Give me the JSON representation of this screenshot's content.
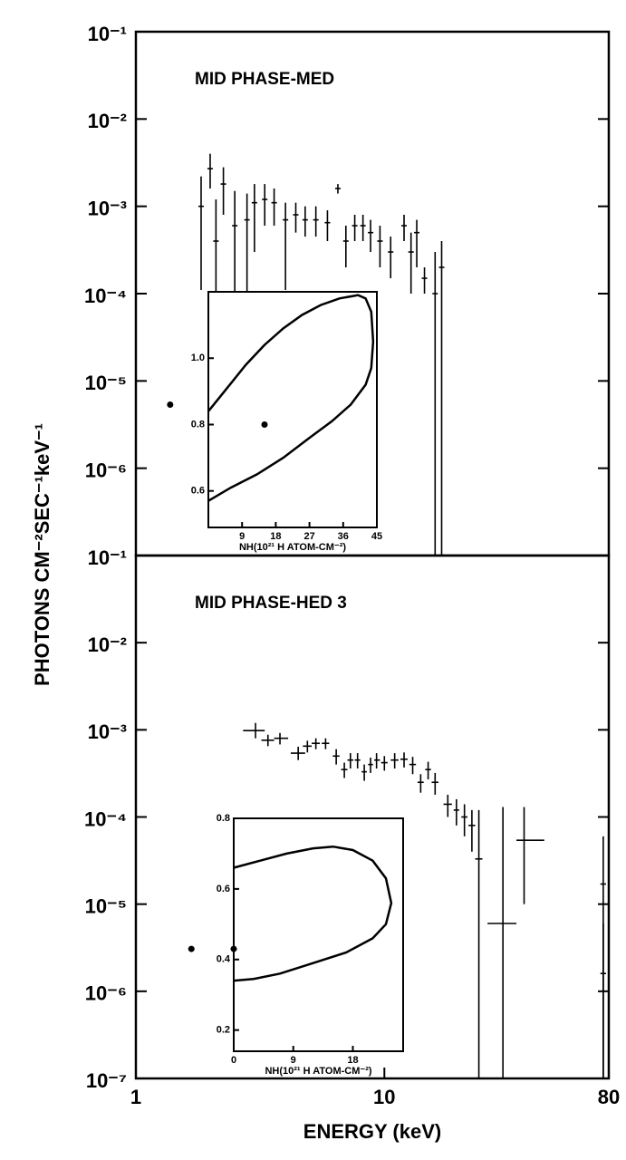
{
  "chart_data": [
    {
      "type": "errorbar",
      "title": "MID PHASE-MED",
      "ylabel": "PHOTONS CM⁻²SEC⁻¹keV⁻¹",
      "xscale": "log",
      "yscale": "log",
      "xlim": [
        1,
        80
      ],
      "ylim": [
        1e-07,
        0.1
      ],
      "yticks": [
        {
          "value": 0.1,
          "label": "10⁻¹"
        },
        {
          "value": 0.01,
          "label": "10⁻²"
        },
        {
          "value": 0.001,
          "label": "10⁻³"
        },
        {
          "value": 0.0001,
          "label": "10⁻⁴"
        },
        {
          "value": 1e-05,
          "label": "10⁻⁵"
        },
        {
          "value": 1e-06,
          "label": "10⁻⁶"
        }
      ],
      "color": "#000000",
      "x": [
        1.83,
        1.99,
        2.1,
        2.25,
        2.5,
        2.8,
        3.0,
        3.3,
        3.6,
        4.0,
        4.4,
        4.8,
        5.3,
        5.9,
        6.5,
        7.0,
        7.6,
        8.2,
        8.8,
        9.6,
        10.6,
        12.0,
        12.8,
        13.5,
        14.5,
        16.0,
        17.0
      ],
      "values": [
        0.001,
        0.0027,
        0.0004,
        0.0018,
        0.0006,
        0.0007,
        0.0011,
        0.0012,
        0.0011,
        0.0007,
        0.0008,
        0.0007,
        0.0007,
        0.00065,
        0.0016,
        0.0004,
        0.0006,
        0.0006,
        0.0005,
        0.0004,
        0.0003,
        0.0006,
        0.0003,
        0.0005,
        0.00015,
        0.0001,
        0.0002
      ],
      "lower": [
        0.00011,
        0.0016,
        0.0001,
        0.0008,
        0.0001,
        0.0001,
        0.0003,
        0.0006,
        0.0006,
        0.00011,
        0.0005,
        0.00045,
        0.00045,
        0.0004,
        0.0014,
        0.0002,
        0.0004,
        0.0004,
        0.0003,
        0.0002,
        0.00015,
        0.0004,
        0.0001,
        0.0002,
        0.0001,
        1e-07,
        1e-07
      ],
      "upper": [
        0.0022,
        0.004,
        0.0012,
        0.0028,
        0.0015,
        0.0014,
        0.0018,
        0.0018,
        0.0016,
        0.0011,
        0.0011,
        0.001,
        0.001,
        0.0009,
        0.0018,
        0.0006,
        0.0008,
        0.0008,
        0.0007,
        0.0006,
        0.00045,
        0.0008,
        0.0005,
        0.0007,
        0.0002,
        0.0003,
        0.0004
      ]
    },
    {
      "type": "errorbar",
      "title": "MID PHASE-HED 3",
      "xlabel": "ENERGY (keV)",
      "xscale": "log",
      "yscale": "log",
      "xlim": [
        1,
        80
      ],
      "ylim": [
        1e-07,
        0.1
      ],
      "xticks": [
        1,
        10,
        80
      ],
      "yticks": [
        {
          "value": 0.1,
          "label": "10⁻¹"
        },
        {
          "value": 0.01,
          "label": "10⁻²"
        },
        {
          "value": 0.001,
          "label": "10⁻³"
        },
        {
          "value": 0.0001,
          "label": "10⁻⁴"
        },
        {
          "value": 1e-05,
          "label": "10⁻⁵"
        },
        {
          "value": 1e-06,
          "label": "10⁻⁶"
        },
        {
          "value": 1e-07,
          "label": "10⁻⁷"
        }
      ],
      "color": "#000000",
      "x": [
        3.03,
        3.4,
        3.8,
        4.5,
        4.9,
        5.3,
        5.8,
        6.4,
        6.9,
        7.3,
        7.8,
        8.3,
        8.8,
        9.3,
        10.0,
        11.0,
        12.0,
        13.0,
        14.0,
        15.0,
        16.0,
        18.0,
        19.5,
        21.0,
        22.5,
        24.0,
        30.0,
        36.5,
        76.0,
        76.0
      ],
      "x_lower": [
        2.7,
        3.2,
        3.6,
        4.2,
        4.7,
        5.1,
        5.6,
        6.2,
        6.7,
        7.1,
        7.6,
        8.1,
        8.6,
        9.1,
        9.7,
        10.6,
        11.6,
        12.6,
        13.6,
        14.6,
        15.5,
        17.3,
        19.0,
        20.4,
        21.8,
        23.2,
        26.0,
        34.0,
        74.0,
        74.0
      ],
      "x_upper": [
        3.3,
        3.6,
        4.1,
        4.8,
        5.1,
        5.5,
        6.0,
        6.6,
        7.1,
        7.5,
        8.0,
        8.5,
        9.0,
        9.6,
        10.3,
        11.4,
        12.4,
        13.4,
        14.4,
        15.4,
        16.5,
        18.7,
        20.0,
        21.6,
        23.2,
        24.8,
        34.0,
        44.0,
        78.0,
        78.0
      ],
      "values": [
        0.00098,
        0.00076,
        0.0008,
        0.00054,
        0.00065,
        0.0007,
        0.0007,
        0.0005,
        0.00035,
        0.00045,
        0.00045,
        0.00033,
        0.0004,
        0.00045,
        0.00042,
        0.00045,
        0.00046,
        0.0004,
        0.00025,
        0.00035,
        0.00025,
        0.00014,
        0.00012,
        0.0001,
        8e-05,
        3.3e-05,
        6e-06,
        5.4e-05,
        1.7e-05,
        1.6e-06
      ],
      "lower": [
        0.0008,
        0.00065,
        0.00068,
        0.00045,
        0.00055,
        0.0006,
        0.0006,
        0.0004,
        0.00028,
        0.00036,
        0.00036,
        0.00026,
        0.00032,
        0.00036,
        0.00034,
        0.00036,
        0.00037,
        0.00031,
        0.00019,
        0.00027,
        0.00018,
        0.0001,
        8e-05,
        6e-05,
        4e-05,
        1e-07,
        1e-07,
        1e-05,
        1e-07,
        1e-07
      ],
      "upper": [
        0.0012,
        0.00088,
        0.00092,
        0.00064,
        0.00075,
        0.0008,
        0.0008,
        0.0006,
        0.00042,
        0.00054,
        0.00054,
        0.0004,
        0.00048,
        0.00054,
        0.0005,
        0.00054,
        0.00055,
        0.00049,
        0.00031,
        0.00043,
        0.00032,
        0.00018,
        0.00016,
        0.00014,
        0.00012,
        0.00012,
        0.00013,
        0.00013,
        6e-05,
        6e-06
      ]
    },
    {
      "type": "contour",
      "xlabel": "NH(10²¹ H ATOM-CM⁻²)",
      "xlim": [
        0,
        45
      ],
      "ylim": [
        0.49,
        1.2
      ],
      "xticks": [
        9,
        18,
        27,
        36,
        45
      ],
      "yticks": [
        0.6,
        0.8,
        {
          "value": 1,
          "label": "1.0"
        }
      ],
      "contour": {
        "x": [
          0,
          5,
          10,
          15,
          20,
          25,
          30,
          35,
          40,
          42,
          43.5,
          44,
          43.5,
          42,
          38,
          33,
          27,
          20,
          13,
          6,
          0
        ],
        "y": [
          0.84,
          0.91,
          0.98,
          1.04,
          1.09,
          1.13,
          1.16,
          1.18,
          1.19,
          1.18,
          1.14,
          1.05,
          0.97,
          0.92,
          0.86,
          0.81,
          0.76,
          0.7,
          0.65,
          0.61,
          0.57
        ]
      },
      "points": {
        "x": [
          15,
          -10.2
        ],
        "y": [
          0.8,
          0.86
        ]
      }
    },
    {
      "type": "contour",
      "xlabel": "NH(10²¹ H ATOM-CM⁻²)",
      "xlim": [
        0,
        25.6
      ],
      "ylim": [
        0.14,
        0.8
      ],
      "xticks": [
        0,
        9,
        18
      ],
      "yticks": [
        0.2,
        0.4,
        0.6,
        0.8
      ],
      "contour": {
        "x": [
          0,
          4,
          8,
          12,
          15,
          18,
          21,
          23,
          23.8,
          23,
          21,
          17,
          12,
          7,
          3,
          0
        ],
        "y": [
          0.66,
          0.68,
          0.7,
          0.715,
          0.72,
          0.71,
          0.68,
          0.63,
          0.56,
          0.5,
          0.46,
          0.42,
          0.39,
          0.36,
          0.345,
          0.34
        ]
      },
      "points": {
        "x": [
          0,
          -6.4
        ],
        "y": [
          0.43,
          0.43
        ]
      }
    }
  ]
}
